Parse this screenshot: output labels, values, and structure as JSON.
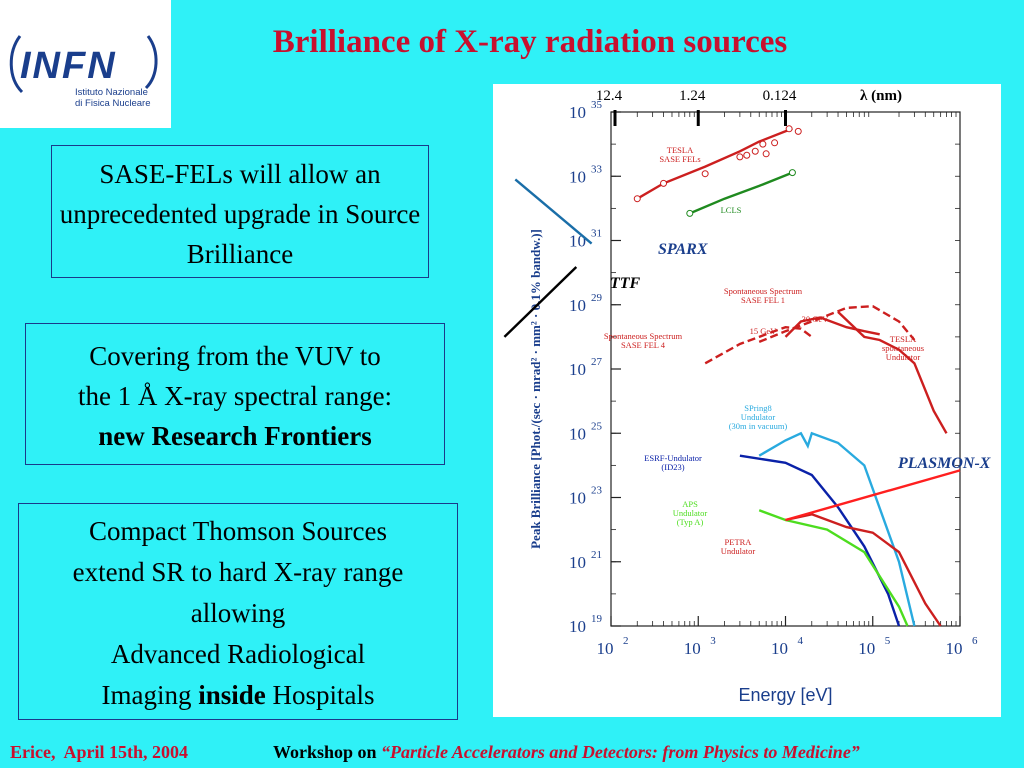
{
  "logo": {
    "wordmark": "INFN",
    "line1": "Istituto Nazionale",
    "line2": "di Fisica Nucleare"
  },
  "title": "Brilliance of X-ray radiation sources",
  "boxes": {
    "sase": "SASE-FELs will allow an unprecedented upgrade in Source Brilliance",
    "vuv": {
      "line1": "Covering from the VUV to",
      "line2": "the 1 Å X-ray spectral range:",
      "line3": "new Research Frontiers"
    },
    "thomson": {
      "line1": "Compact Thomson Sources",
      "line2": "extend SR to hard X-ray range",
      "line3": "allowing",
      "line4": "Advanced Radiological",
      "line5_pre": "Imaging ",
      "line5_bold": "inside",
      "line5_post": " Hospitals"
    }
  },
  "footer": {
    "left": "Erice,  April 15th, 2004",
    "lead": "Workshop on ",
    "title": "“Particle Accelerators and Detectors: from Physics to Medicine”"
  },
  "annotations": {
    "sparx": "SPARX",
    "ttf": "TTF",
    "plasmon": "PLASMON-X"
  },
  "chart_data": {
    "type": "line",
    "x_scale": "log",
    "y_scale": "log",
    "xlabel": "Energy [eV]",
    "ylabel": "Peak Brilliance [Phot./(sec · mrad² · mm² · 0.1% bandw.)]",
    "xlim": [
      100,
      1000000
    ],
    "ylim": [
      1e+19,
      1e+35
    ],
    "x_ticks": [
      {
        "exp": 2
      },
      {
        "exp": 3
      },
      {
        "exp": 4
      },
      {
        "exp": 5
      },
      {
        "exp": 6
      }
    ],
    "y_ticks": [
      {
        "exp": 19
      },
      {
        "exp": 21
      },
      {
        "exp": 23
      },
      {
        "exp": 25
      },
      {
        "exp": 27
      },
      {
        "exp": 29
      },
      {
        "exp": 31
      },
      {
        "exp": 33
      },
      {
        "exp": 35
      }
    ],
    "tick_base": "10",
    "top_axis": {
      "label": "λ  (nm)",
      "ticks": [
        {
          "label": "12.4",
          "x": 100
        },
        {
          "label": "1.24",
          "x": 1000
        },
        {
          "label": "0.124",
          "x": 10000
        }
      ]
    },
    "series": [
      {
        "name": "TESLA SASE FELs",
        "color": "#cc1f1f",
        "x": [
          200,
          400,
          1200,
          3000,
          5000,
          10000,
          12000
        ],
        "y": [
          2e+32,
          6e+32,
          2e+33,
          6e+33,
          1.2e+34,
          2.5e+34,
          3e+34
        ],
        "markers": [
          [
            200,
            2e+32
          ],
          [
            400,
            6e+32
          ],
          [
            1200,
            1.2e+33
          ],
          [
            3000,
            4e+33
          ],
          [
            3600,
            4.5e+33
          ],
          [
            4500,
            6e+33
          ],
          [
            5500,
            1e+34
          ],
          [
            6000,
            5e+33
          ],
          [
            7500,
            1.1e+34
          ],
          [
            11000,
            3e+34
          ],
          [
            14000,
            2.5e+34
          ]
        ]
      },
      {
        "name": "LCLS",
        "color": "#1f8a1f",
        "x": [
          800,
          2000,
          5000,
          12000
        ],
        "y": [
          7e+31,
          2e+32,
          5e+32,
          1.3e+33
        ],
        "markers": [
          [
            800,
            7e+31
          ],
          [
            12000,
            1.3e+33
          ]
        ]
      },
      {
        "name": "SPARX",
        "color": "#1a6ea8",
        "x": [
          8,
          60
        ],
        "y": [
          8e+32,
          8e+30
        ]
      },
      {
        "name": "TTF",
        "color": "#000000",
        "x": [
          6,
          40
        ],
        "y": [
          1e+28,
          1.5e+30
        ]
      },
      {
        "name": "Spontaneous Spectrum SASE FEL 4",
        "color": "#cc1f1f",
        "dash": "dashed",
        "x": [
          1200,
          3000,
          6000,
          10000,
          15000,
          20000
        ],
        "y": [
          1.5e+27,
          6e+27,
          1.2e+28,
          2e+28,
          1.8e+28,
          1e+28
        ]
      },
      {
        "name": "15 GeV",
        "color": "#cc1f1f",
        "x": [
          10000,
          15000,
          25000,
          50000,
          80000,
          120000
        ],
        "y": [
          1e+28,
          3e+28,
          4e+28,
          2e+28,
          1.5e+28,
          1.2e+28
        ]
      },
      {
        "name": "Spontaneous Spectrum SASE FEL 1",
        "color": "#cc1f1f",
        "dash": "dashed",
        "x": [
          5000,
          10000,
          20000,
          50000,
          100000,
          200000,
          300000
        ],
        "y": [
          7e+27,
          1.5e+28,
          3e+28,
          8e+28,
          9e+28,
          3e+28,
          8e+27
        ]
      },
      {
        "name": "30 GeV",
        "color": "#cc1f1f",
        "x": [
          40000,
          80000,
          120000,
          200000,
          300000,
          500000,
          700000
        ],
        "y": [
          6e+28,
          1e+28,
          8e+27,
          4e+27,
          1.5e+27,
          5e+25,
          1e+25
        ]
      },
      {
        "name": "SPring8 Undulator (30m in vacuum)",
        "color": "#29aadf",
        "x": [
          5000,
          10000,
          15000,
          18000,
          20000,
          40000,
          80000,
          200000,
          300000
        ],
        "y": [
          2e+24,
          6e+24,
          1e+25,
          4e+24,
          1e+25,
          5e+24,
          1e+24,
          1e+21,
          1e+19
        ]
      },
      {
        "name": "ESRF-Undulator (ID23)",
        "color": "#0a21a8",
        "x": [
          3000,
          10000,
          20000,
          40000,
          80000,
          150000,
          200000
        ],
        "y": [
          2e+24,
          1.2e+24,
          5e+23,
          5e+22,
          3e+21,
          1e+20,
          1e+19
        ]
      },
      {
        "name": "APS Undulator (Typ A)",
        "color": "#4ddd1f",
        "x": [
          5000,
          10000,
          30000,
          80000,
          200000,
          250000
        ],
        "y": [
          4e+22,
          2e+22,
          1e+22,
          2e+21,
          4e+19,
          1e+19
        ]
      },
      {
        "name": "PETRA Undulator",
        "color": "#cc1f1f",
        "x": [
          10000,
          20000,
          50000,
          100000,
          200000,
          400000,
          600000
        ],
        "y": [
          2e+22,
          3e+22,
          1.2e+22,
          8e+21,
          2e+21,
          5e+19,
          1e+19
        ]
      },
      {
        "name": "PLASMON-X",
        "color": "#ff1f1f",
        "x": [
          10000,
          1000000
        ],
        "y": [
          2e+22,
          7e+23
        ]
      }
    ],
    "series_labels": [
      {
        "text": "TESLA SASE FELs",
        "color": "#cc1f1f"
      },
      {
        "text": "LCLS",
        "color": "#1f8a1f"
      },
      {
        "text": "Spontaneous Spectrum SASE FEL 1",
        "color": "#cc1f1f"
      },
      {
        "text": "30 GeV",
        "color": "#cc1f1f"
      },
      {
        "text": "15 GeV",
        "color": "#cc1f1f"
      },
      {
        "text": "Spontaneous Spectrum SASE FEL 4",
        "color": "#cc1f1f"
      },
      {
        "text": "TESLA spontaneous Undulator",
        "color": "#cc1f1f"
      },
      {
        "text": "SPring8 Undulator (30m in vacuum)",
        "color": "#29aadf"
      },
      {
        "text": "ESRF-Undulator (ID23)",
        "color": "#0a21a8"
      },
      {
        "text": "APS Undulator (Typ A)",
        "color": "#4ddd1f"
      },
      {
        "text": "PETRA Undulator",
        "color": "#cc1f1f"
      }
    ]
  }
}
